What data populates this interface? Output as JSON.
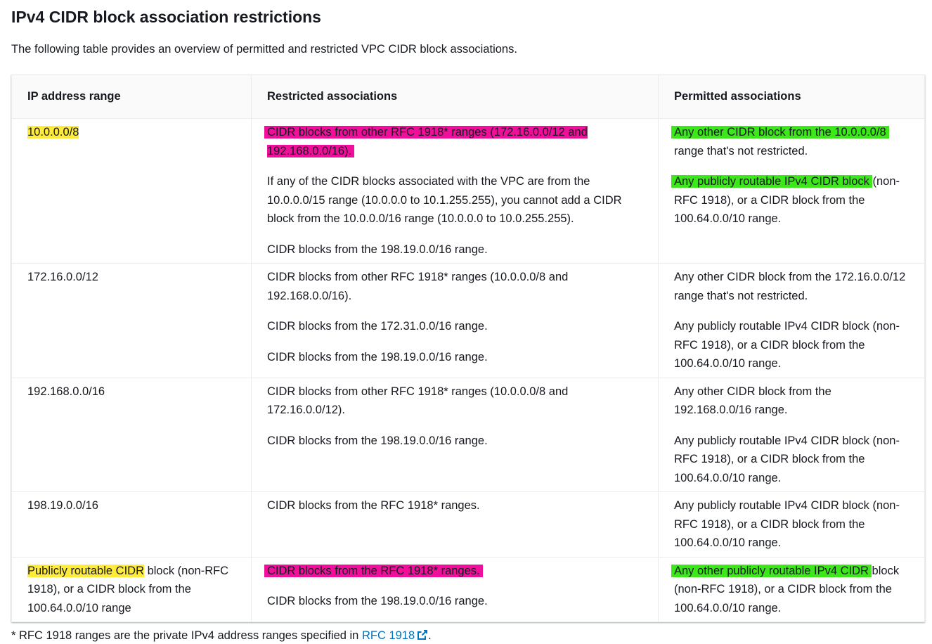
{
  "heading": "IPv4 CIDR block association restrictions",
  "intro": "The following table provides an overview of permitted and restricted VPC CIDR block associations.",
  "table": {
    "headers": [
      "IP address range",
      "Restricted associations",
      "Permitted associations"
    ],
    "rows": [
      {
        "range": "10.0.0.0/8",
        "restricted": [
          "CIDR blocks from other RFC 1918* ranges (172.16.0.0/12 and 192.168.0.0/16).",
          "If any of the CIDR blocks associated with the VPC are from the 10.0.0.0/15 range (10.0.0.0 to 10.1.255.255), you cannot add a CIDR block from the 10.0.0.0/16 range (10.0.0.0 to 10.0.255.255).",
          "CIDR blocks from the 198.19.0.0/16 range."
        ],
        "permitted_1a": "Any other CIDR block from the 10.0.0.0/8",
        "permitted_1b": "range that's not restricted.",
        "permitted_2a": "Any publicly routable IPv4 CIDR block",
        "permitted_2b": "(non-RFC 1918), or a CIDR block from the 100.64.0.0/10 range."
      },
      {
        "range": "172.16.0.0/12",
        "restricted": [
          "CIDR blocks from other RFC 1918* ranges (10.0.0.0/8 and 192.168.0.0/16).",
          "CIDR blocks from the 172.31.0.0/16 range.",
          "CIDR blocks from the 198.19.0.0/16 range."
        ],
        "permitted": [
          "Any other CIDR block from the 172.16.0.0/12 range that's not restricted.",
          "Any publicly routable IPv4 CIDR block (non-RFC 1918), or a CIDR block from the 100.64.0.0/10 range."
        ]
      },
      {
        "range": "192.168.0.0/16",
        "restricted": [
          "CIDR blocks from other RFC 1918* ranges (10.0.0.0/8 and 172.16.0.0/12).",
          "CIDR blocks from the 198.19.0.0/16 range."
        ],
        "permitted": [
          "Any other CIDR block from the 192.168.0.0/16 range.",
          "Any publicly routable IPv4 CIDR block (non-RFC 1918), or a CIDR block from the 100.64.0.0/10 range."
        ]
      },
      {
        "range": "198.19.0.0/16",
        "restricted": [
          "CIDR blocks from the RFC 1918* ranges."
        ],
        "permitted": [
          "Any publicly routable IPv4 CIDR block (non-RFC 1918), or a CIDR block from the 100.64.0.0/10 range."
        ]
      },
      {
        "range_a": "Publicly routable CIDR",
        "range_b": " block (non-RFC 1918), or a CIDR block from the 100.64.0.0/10 range",
        "restricted": [
          "CIDR blocks from the RFC 1918* ranges.",
          "CIDR blocks from the 198.19.0.0/16 range."
        ],
        "permitted_a": "Any other publicly routable IPv4 CIDR",
        "permitted_b": " block (non-RFC 1918), or a CIDR block from the 100.64.0.0/10 range."
      }
    ]
  },
  "footnote": {
    "text": "* RFC 1918 ranges are the private IPv4 address ranges specified in ",
    "link": "RFC 1918",
    "after": "."
  },
  "colors": {
    "highlight_yellow": "#ffeb3b",
    "highlight_pink": "#ef0f9a",
    "highlight_green": "#3ce81a",
    "link": "#0073bb"
  },
  "icons": {
    "external_link": "external-link-icon"
  }
}
